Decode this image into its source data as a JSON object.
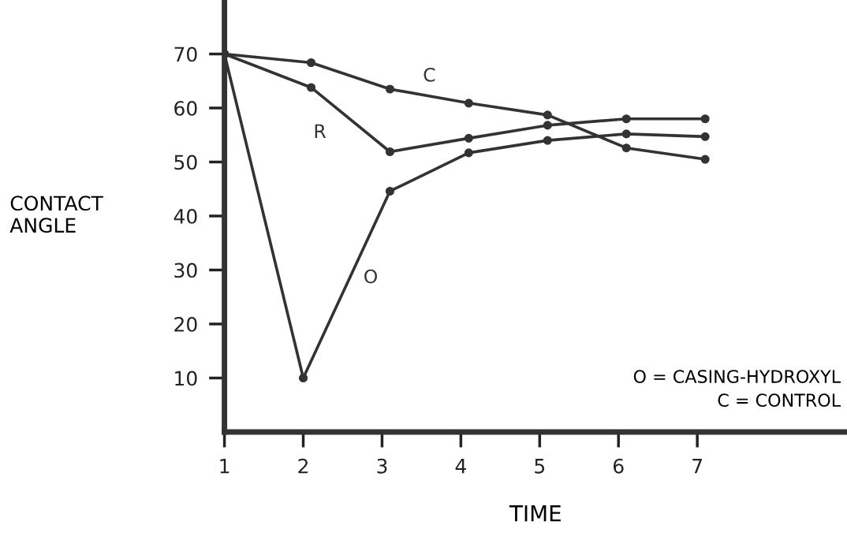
{
  "chart_data": {
    "type": "line",
    "xlabel": "TIME",
    "ylabel": "CONTACT\nANGLE",
    "xlim": [
      1,
      8.9
    ],
    "ylim": [
      0,
      80
    ],
    "xticks": [
      1,
      2,
      3,
      4,
      5,
      6,
      7
    ],
    "yticks": [
      10,
      20,
      30,
      40,
      50,
      60,
      70
    ],
    "grid": false,
    "legend": false,
    "marker": "circle",
    "line_style": "solid",
    "series": [
      {
        "name": "C",
        "color": "#333333",
        "x": [
          1,
          2.1,
          3.1,
          4.1,
          5.1,
          6.1,
          7.1
        ],
        "values": [
          70,
          68.4,
          63.5,
          60.9,
          58.7,
          52.6,
          50.5
        ]
      },
      {
        "name": "R",
        "color": "#333333",
        "x": [
          1,
          2.1,
          3.1,
          4.1,
          5.1,
          6.1,
          7.1
        ],
        "values": [
          70,
          63.8,
          51.9,
          54.4,
          56.8,
          58.0,
          58.0
        ]
      },
      {
        "name": "O",
        "color": "#333333",
        "x": [
          1,
          2,
          3.1,
          4.1,
          5.1,
          6.1,
          7.1
        ],
        "values": [
          70,
          10,
          44.6,
          51.7,
          54.0,
          55.2,
          54.7
        ]
      }
    ],
    "annotations": [
      "O = CASING-HYDROXYL",
      "C = CONTROL"
    ]
  }
}
